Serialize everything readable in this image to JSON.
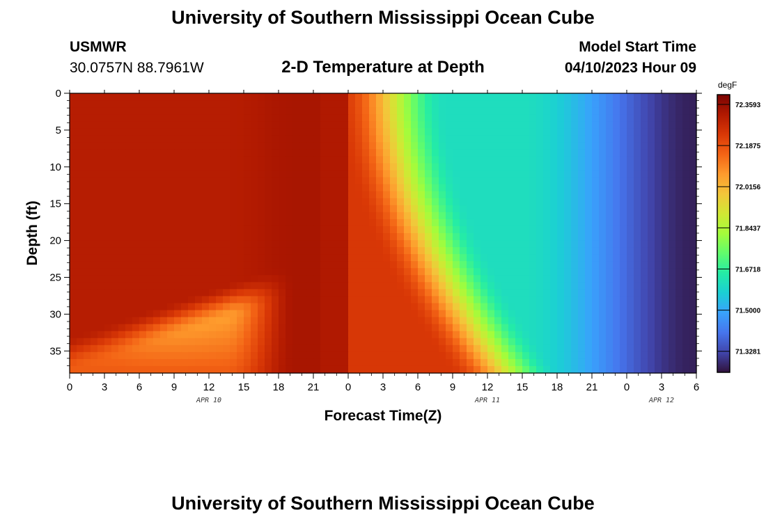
{
  "header": {
    "title": "University of Southern Mississippi Ocean Cube",
    "station": "USMWR",
    "coords": "30.0757N  88.7961W",
    "subtitle": "2-D Temperature at Depth",
    "model_start_label": "Model Start Time",
    "model_start_value": "04/10/2023 Hour 09"
  },
  "footer": {
    "title": "University of Southern Mississippi Ocean Cube"
  },
  "chart_data": {
    "type": "heatmap",
    "title": "2-D Temperature at Depth",
    "xlabel": "Forecast Time(Z)",
    "ylabel": "Depth (ft)",
    "x_tick_labels": [
      "0",
      "3",
      "6",
      "9",
      "12",
      "15",
      "18",
      "21",
      "0",
      "3",
      "6",
      "9",
      "12",
      "15",
      "18",
      "21",
      "0",
      "3",
      "6"
    ],
    "date_labels": [
      {
        "label": "APR 10",
        "at_tick": 4
      },
      {
        "label": "APR 11",
        "at_tick": 12
      },
      {
        "label": "APR 12",
        "at_tick": 17
      }
    ],
    "xlim_hours": [
      0,
      54
    ],
    "y_ticks": [
      0,
      5,
      10,
      15,
      20,
      25,
      30,
      35
    ],
    "ylim": [
      0,
      38
    ],
    "y_inverted": true,
    "colorbar": {
      "unit": "degF",
      "min": 71.24,
      "max": 72.4,
      "tick_labels": [
        "72.3593",
        "72.1875",
        "72.0156",
        "71.8437",
        "71.6718",
        "71.5000",
        "71.3281"
      ],
      "tick_values": [
        72.3593,
        72.1875,
        72.0156,
        71.8437,
        71.6718,
        71.5,
        71.3281
      ]
    },
    "grid": false,
    "colors": {
      "scale": [
        "#30123b",
        "#4145ab",
        "#4675ed",
        "#39a2fc",
        "#1bcfd4",
        "#24eca6",
        "#61fc6c",
        "#a4fc3b",
        "#d1e834",
        "#f3c63a",
        "#fe9b2d",
        "#f36315",
        "#d93806",
        "#b11901",
        "#7a0402"
      ]
    }
  }
}
